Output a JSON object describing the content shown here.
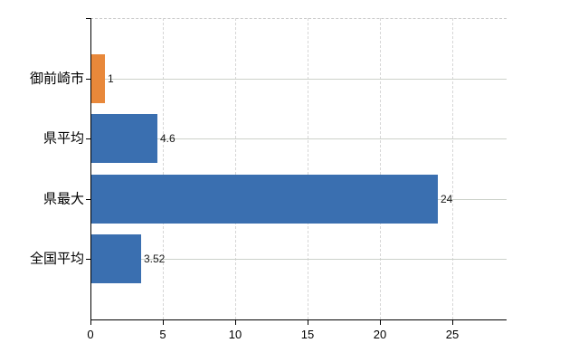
{
  "chart_data": {
    "type": "bar",
    "orientation": "horizontal",
    "title": "",
    "xlabel": "",
    "ylabel": "",
    "categories": [
      "御前崎市",
      "県平均",
      "県最大",
      "全国平均"
    ],
    "values": [
      1,
      4.6,
      24,
      3.52
    ],
    "value_labels": [
      "1",
      "4.6",
      "24",
      "3.52"
    ],
    "bar_colors": [
      "#e8883a",
      "#3a6fb0",
      "#3a6fb0",
      "#3a6fb0"
    ],
    "x_ticks": [
      0,
      5,
      10,
      15,
      20,
      25
    ],
    "x_tick_labels": [
      "0",
      "5",
      "10",
      "15",
      "20",
      "25"
    ],
    "xlim": [
      0,
      28.75
    ],
    "grid": true,
    "legend": false
  },
  "colors": {
    "background": "#ffffff",
    "bar_blue": "#3a6fb0",
    "bar_orange": "#e8883a",
    "axis": "#000000",
    "horizontal_gridline": "#ccd1ca",
    "vertical_gridline": "#d6d6d6",
    "top_border": "#c9c9c9",
    "text": "#000000"
  }
}
